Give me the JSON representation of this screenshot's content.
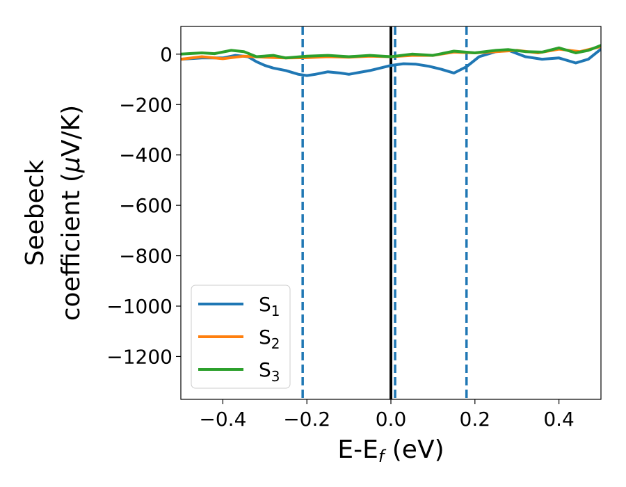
{
  "chart_data": {
    "type": "line",
    "xlabel": {
      "main": "E-E",
      "sub": "f",
      "suffix": " (eV)"
    },
    "ylabel": {
      "line1": "Seebeck",
      "line2": "coefficient  (",
      "mu": "μ",
      "unit": "V/K)"
    },
    "xlim": [
      -0.5,
      0.5
    ],
    "ylim": [
      -1370,
      110
    ],
    "xticks": [
      {
        "value": -0.4,
        "label": "−0.4"
      },
      {
        "value": -0.2,
        "label": "−0.2"
      },
      {
        "value": 0.0,
        "label": "0.0"
      },
      {
        "value": 0.2,
        "label": "0.2"
      },
      {
        "value": 0.4,
        "label": "0.4"
      }
    ],
    "yticks": [
      {
        "value": 0,
        "label": "0"
      },
      {
        "value": -200,
        "label": "−200"
      },
      {
        "value": -400,
        "label": "−400"
      },
      {
        "value": -600,
        "label": "−600"
      },
      {
        "value": -800,
        "label": "−800"
      },
      {
        "value": -1000,
        "label": "−1000"
      },
      {
        "value": -1200,
        "label": "−1200"
      }
    ],
    "grid": false,
    "legend": "lower-left",
    "vlines": [
      {
        "x": 0.0,
        "style": "solid",
        "color": "#000000"
      },
      {
        "x": -0.21,
        "style": "dashed",
        "color": "#1f77b4"
      },
      {
        "x": 0.01,
        "style": "dashed",
        "color": "#1f77b4"
      },
      {
        "x": 0.18,
        "style": "dashed",
        "color": "#1f77b4"
      }
    ],
    "series": [
      {
        "name": "S",
        "sub": "1",
        "color": "#1f77b4",
        "x": [
          -0.5,
          -0.45,
          -0.4,
          -0.37,
          -0.34,
          -0.32,
          -0.3,
          -0.28,
          -0.25,
          -0.22,
          -0.2,
          -0.18,
          -0.15,
          -0.12,
          -0.1,
          -0.05,
          0.0,
          0.03,
          0.06,
          0.09,
          0.12,
          0.15,
          0.18,
          0.21,
          0.25,
          0.28,
          0.32,
          0.36,
          0.4,
          0.44,
          0.47,
          0.5
        ],
        "y": [
          -20,
          -15,
          -15,
          -5,
          -10,
          -30,
          -45,
          -55,
          -65,
          -80,
          -85,
          -80,
          -70,
          -75,
          -80,
          -65,
          -45,
          -38,
          -40,
          -48,
          -60,
          -75,
          -50,
          -10,
          10,
          15,
          -10,
          -20,
          -15,
          -35,
          -20,
          20
        ]
      },
      {
        "name": "S",
        "sub": "2",
        "color": "#ff7f0e",
        "x": [
          -0.5,
          -0.45,
          -0.4,
          -0.35,
          -0.3,
          -0.25,
          -0.2,
          -0.15,
          -0.1,
          -0.05,
          0.0,
          0.05,
          0.1,
          0.15,
          0.2,
          0.25,
          0.3,
          0.35,
          0.4,
          0.45,
          0.5
        ],
        "y": [
          -20,
          -10,
          -18,
          -8,
          -12,
          -15,
          -14,
          -10,
          -12,
          -8,
          -10,
          -5,
          -5,
          8,
          5,
          10,
          15,
          5,
          20,
          10,
          30
        ]
      },
      {
        "name": "S",
        "sub": "3",
        "color": "#2ca02c",
        "x": [
          -0.5,
          -0.45,
          -0.42,
          -0.38,
          -0.35,
          -0.32,
          -0.28,
          -0.25,
          -0.2,
          -0.15,
          -0.1,
          -0.05,
          0.0,
          0.05,
          0.1,
          0.15,
          0.2,
          0.25,
          0.28,
          0.32,
          0.36,
          0.4,
          0.44,
          0.47,
          0.5
        ],
        "y": [
          0,
          5,
          2,
          15,
          10,
          -10,
          -5,
          -15,
          -8,
          -5,
          -10,
          -5,
          -10,
          0,
          -5,
          12,
          5,
          15,
          18,
          10,
          8,
          25,
          5,
          15,
          35
        ]
      }
    ]
  }
}
